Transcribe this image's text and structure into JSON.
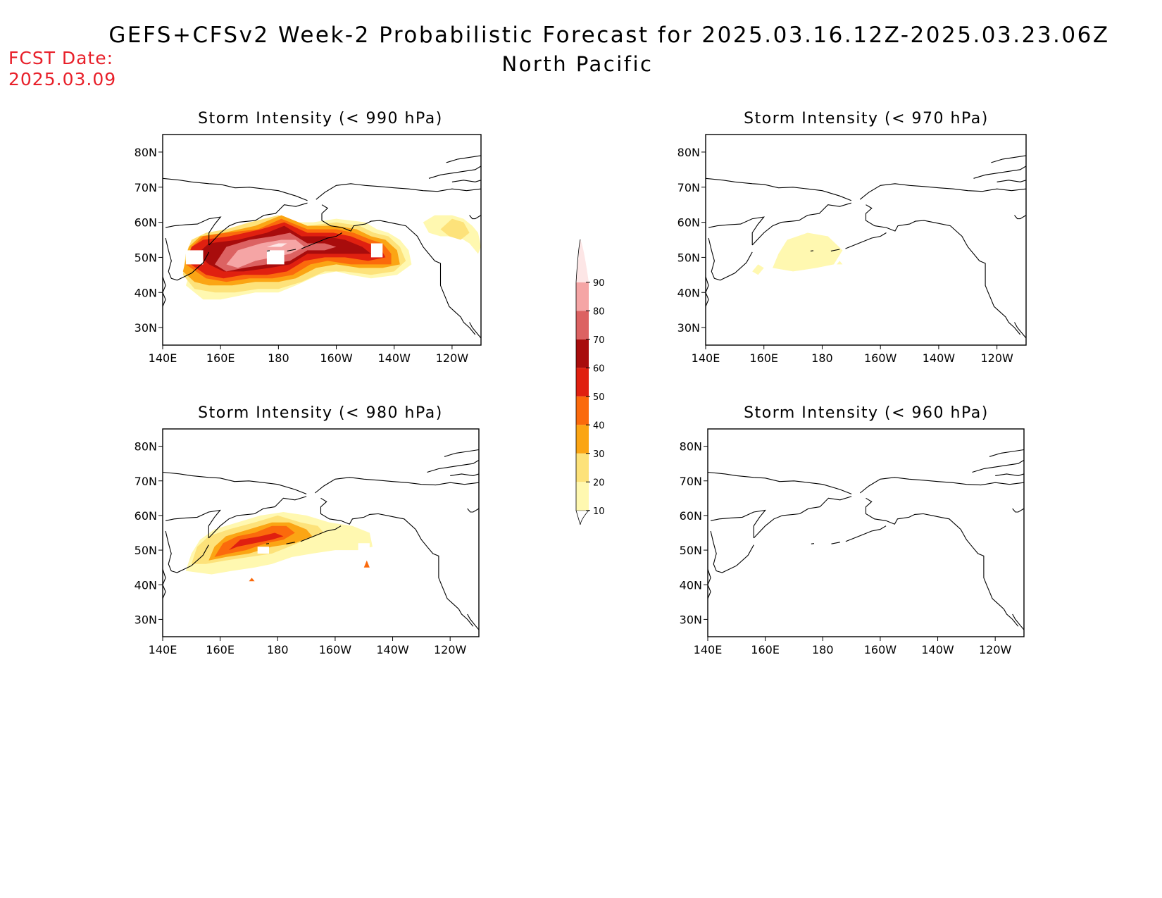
{
  "header": {
    "title": "GEFS+CFSv2 Week-2 Probabilistic Forecast for 2025.03.16.12Z-2025.03.23.06Z",
    "subtitle": "North Pacific",
    "fcst_label": "FCST Date:",
    "fcst_date": "2025.03.09"
  },
  "colors": {
    "title_text": "#000000",
    "fcst_text": "#e8202a",
    "scale": [
      "#fff8b0",
      "#fde27a",
      "#fba514",
      "#fb6a0c",
      "#e02010",
      "#a80c0c",
      "#dc6262",
      "#f5a5a5",
      "#fde6e6"
    ]
  },
  "colorbar": {
    "ticks": [
      "10",
      "20",
      "30",
      "40",
      "50",
      "60",
      "70",
      "80",
      "90"
    ]
  },
  "axes": {
    "lon_labels": [
      "140E",
      "160E",
      "180",
      "160W",
      "140W",
      "120W"
    ],
    "lat_labels": [
      "80N",
      "70N",
      "60N",
      "50N",
      "40N",
      "30N"
    ]
  },
  "panels": [
    {
      "id": "p990",
      "title": "Storm Intensity (< 990 hPa)"
    },
    {
      "id": "p970",
      "title": "Storm Intensity (< 970 hPa)"
    },
    {
      "id": "p980",
      "title": "Storm Intensity (< 980 hPa)"
    },
    {
      "id": "p960",
      "title": "Storm Intensity (< 960 hPa)"
    }
  ]
}
